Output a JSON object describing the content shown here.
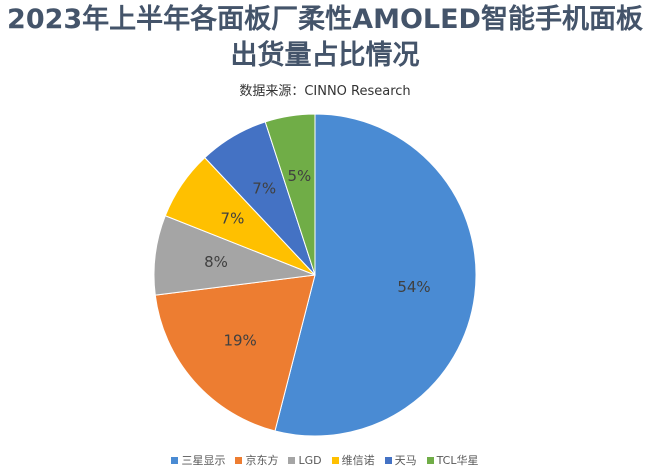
{
  "chart_data": {
    "type": "pie",
    "title_line1": "2023年上半年各面板厂柔性AMOLED智能手机面板",
    "title_line2": "出货量占比情况",
    "subtitle": "数据来源：CINNO Research",
    "legend_position": "bottom",
    "slices": [
      {
        "name": "三星显示",
        "value": 54,
        "label": "54%",
        "color": "#4a8bd3"
      },
      {
        "name": "京东方",
        "value": 19,
        "label": "19%",
        "color": "#ed7d31"
      },
      {
        "name": "LGD",
        "value": 8,
        "label": "8%",
        "color": "#a5a5a5"
      },
      {
        "name": "维信诺",
        "value": 7,
        "label": "7%",
        "color": "#ffc000"
      },
      {
        "name": "天马",
        "value": 7,
        "label": "7%",
        "color": "#4472c4"
      },
      {
        "name": "TCL华星",
        "value": 5,
        "label": "5%",
        "color": "#70ad47"
      }
    ]
  }
}
